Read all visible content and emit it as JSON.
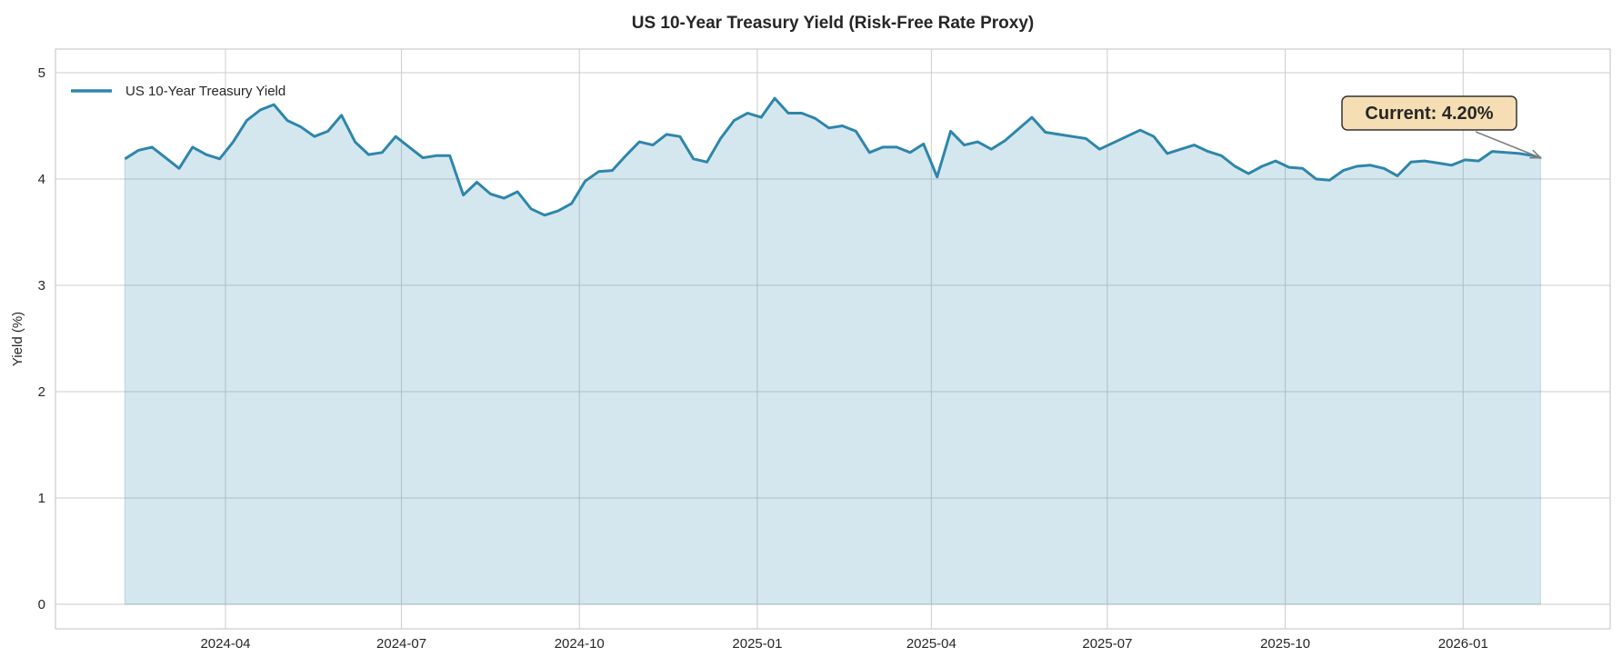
{
  "chart_data": {
    "type": "area",
    "title": "US 10-Year Treasury Yield (Risk-Free Rate Proxy)",
    "xlabel": "",
    "ylabel": "Yield (%)",
    "ylim": [
      -0.25,
      5.05
    ],
    "xlim": [
      "2024-01-01",
      "2026-03-10"
    ],
    "grid": true,
    "legend_position": "top-left",
    "yticks": [
      "0",
      "1",
      "2",
      "3",
      "4",
      "5"
    ],
    "xticks": [
      "2024-04",
      "2024-07",
      "2024-10",
      "2025-01",
      "2025-04",
      "2025-07",
      "2025-10",
      "2026-01"
    ],
    "series": [
      {
        "name": "US 10-Year Treasury Yield",
        "color": "#2e86ab",
        "fill_color": "#2e86ab",
        "fill_opacity": 0.2,
        "x": [
          "2024-02-09",
          "2024-02-16",
          "2024-02-23",
          "2024-03-01",
          "2024-03-08",
          "2024-03-15",
          "2024-03-22",
          "2024-03-29",
          "2024-04-05",
          "2024-04-12",
          "2024-04-19",
          "2024-04-26",
          "2024-05-03",
          "2024-05-10",
          "2024-05-17",
          "2024-05-24",
          "2024-05-31",
          "2024-06-07",
          "2024-06-14",
          "2024-06-21",
          "2024-06-28",
          "2024-07-05",
          "2024-07-12",
          "2024-07-19",
          "2024-07-26",
          "2024-08-02",
          "2024-08-09",
          "2024-08-16",
          "2024-08-23",
          "2024-08-30",
          "2024-09-06",
          "2024-09-13",
          "2024-09-20",
          "2024-09-27",
          "2024-10-04",
          "2024-10-11",
          "2024-10-18",
          "2024-10-25",
          "2024-11-01",
          "2024-11-08",
          "2024-11-15",
          "2024-11-22",
          "2024-11-29",
          "2024-12-06",
          "2024-12-13",
          "2024-12-20",
          "2024-12-27",
          "2025-01-03",
          "2025-01-10",
          "2025-01-17",
          "2025-01-24",
          "2025-01-31",
          "2025-02-07",
          "2025-02-14",
          "2025-02-21",
          "2025-02-28",
          "2025-03-07",
          "2025-03-14",
          "2025-03-21",
          "2025-03-28",
          "2025-04-04",
          "2025-04-11",
          "2025-04-18",
          "2025-04-25",
          "2025-05-02",
          "2025-05-09",
          "2025-05-16",
          "2025-05-23",
          "2025-05-30",
          "2025-06-06",
          "2025-06-13",
          "2025-06-20",
          "2025-06-27",
          "2025-07-04",
          "2025-07-11",
          "2025-07-18",
          "2025-07-25",
          "2025-08-01",
          "2025-08-08",
          "2025-08-15",
          "2025-08-22",
          "2025-08-29",
          "2025-09-05",
          "2025-09-12",
          "2025-09-19",
          "2025-09-26",
          "2025-10-03",
          "2025-10-10",
          "2025-10-17",
          "2025-10-24",
          "2025-10-31",
          "2025-11-07",
          "2025-11-14",
          "2025-11-21",
          "2025-11-28",
          "2025-12-05",
          "2025-12-12",
          "2025-12-19",
          "2025-12-26",
          "2026-01-02",
          "2026-01-09",
          "2026-01-16",
          "2026-01-23",
          "2026-01-30",
          "2026-02-06",
          "2026-02-10"
        ],
        "y": [
          4.19,
          4.27,
          4.3,
          4.2,
          4.1,
          4.3,
          4.23,
          4.19,
          4.35,
          4.55,
          4.65,
          4.7,
          4.55,
          4.49,
          4.4,
          4.45,
          4.6,
          4.35,
          4.23,
          4.25,
          4.4,
          4.3,
          4.2,
          4.22,
          4.22,
          3.85,
          3.97,
          3.86,
          3.82,
          3.88,
          3.72,
          3.66,
          3.7,
          3.77,
          3.98,
          4.07,
          4.08,
          4.22,
          4.35,
          4.32,
          4.42,
          4.4,
          4.19,
          4.16,
          4.38,
          4.55,
          4.62,
          4.58,
          4.76,
          4.62,
          4.62,
          4.57,
          4.48,
          4.5,
          4.45,
          4.25,
          4.3,
          4.3,
          4.25,
          4.33,
          4.02,
          4.45,
          4.32,
          4.35,
          4.28,
          4.36,
          4.47,
          4.58,
          4.44,
          4.42,
          4.4,
          4.38,
          4.28,
          4.34,
          4.4,
          4.46,
          4.4,
          4.24,
          4.28,
          4.32,
          4.26,
          4.22,
          4.12,
          4.05,
          4.12,
          4.17,
          4.11,
          4.1,
          4.0,
          3.99,
          4.08,
          4.12,
          4.13,
          4.1,
          4.03,
          4.16,
          4.17,
          4.15,
          4.13,
          4.18,
          4.17,
          4.26,
          4.25,
          4.24,
          4.22,
          4.2
        ]
      }
    ],
    "annotations": [
      {
        "text": "Current: 4.20%",
        "x": "2026-02-10",
        "y": 4.2,
        "box_color": "#f5deb3",
        "arrow_color": "#808080"
      }
    ]
  }
}
